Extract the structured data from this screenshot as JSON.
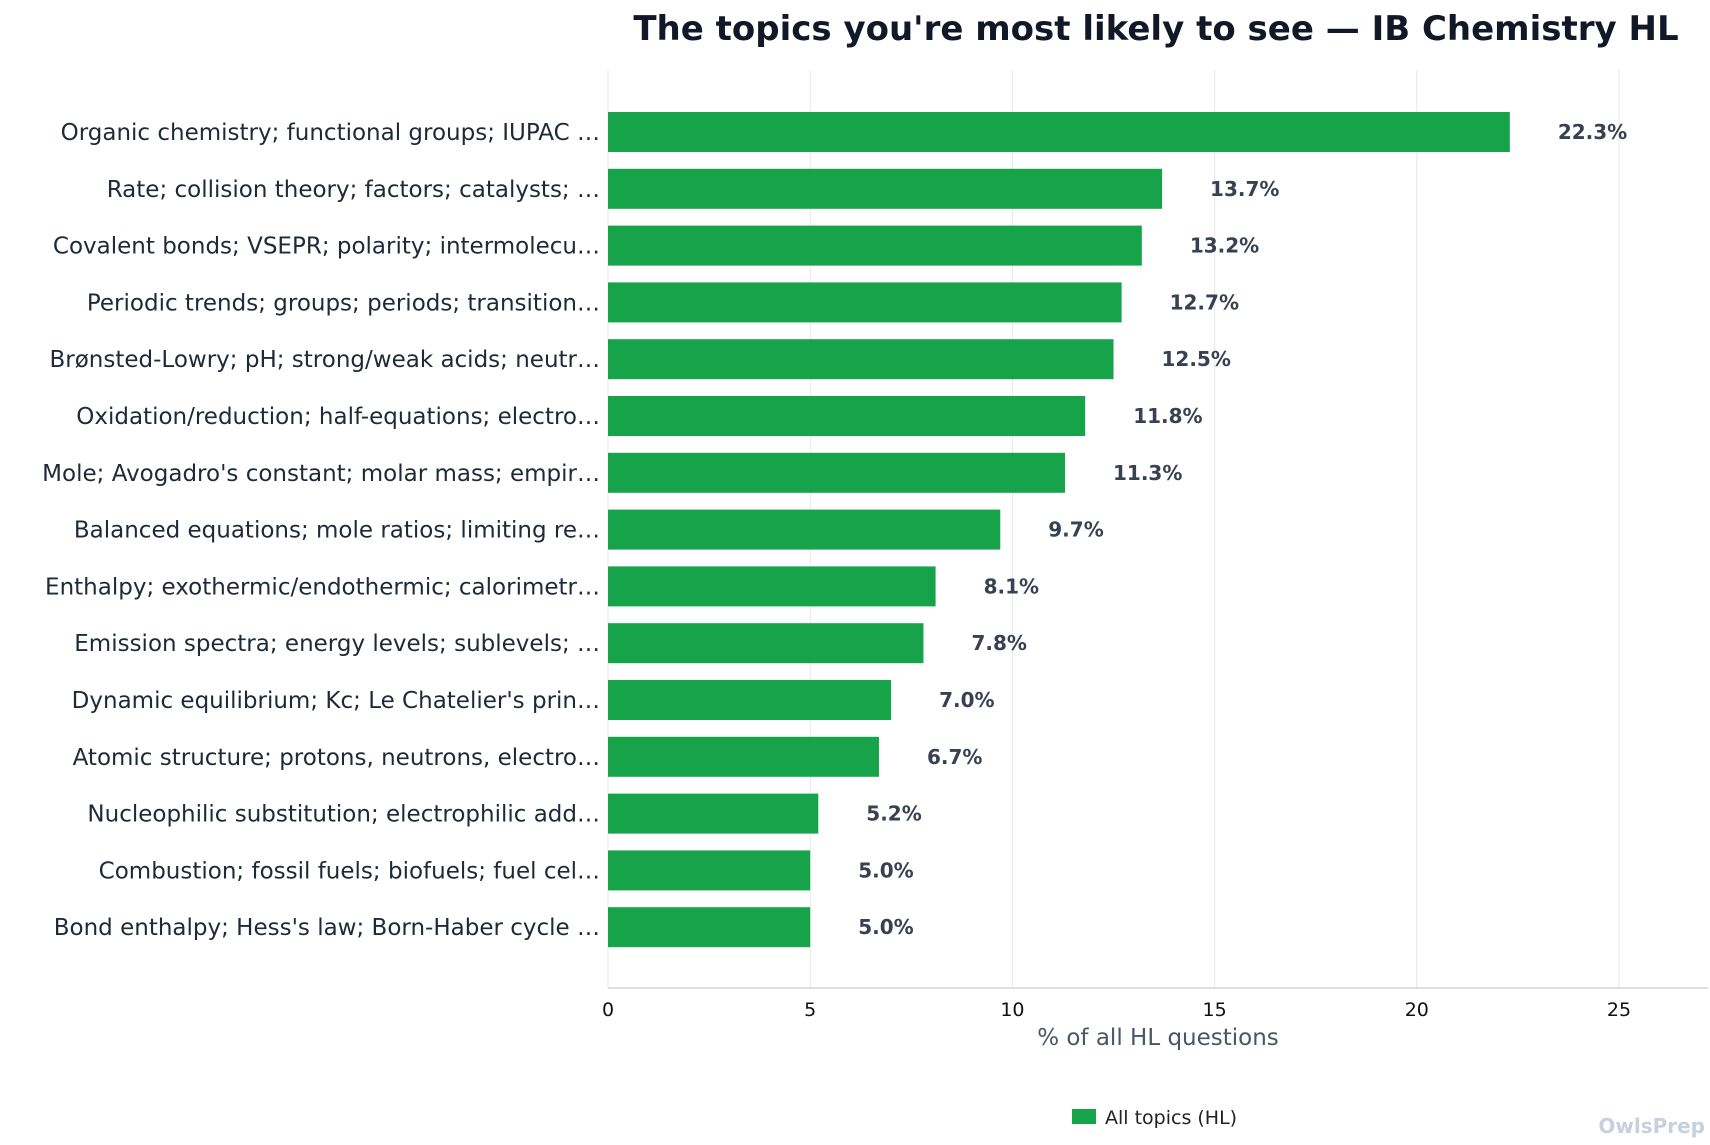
{
  "chart_data": {
    "type": "bar",
    "orientation": "horizontal",
    "title": "The topics you're most likely to see — IB Chemistry HL",
    "xlabel": "% of all HL questions",
    "ylabel": "",
    "xlim": [
      0,
      27.2
    ],
    "xticks": [
      0,
      5,
      10,
      15,
      20,
      25
    ],
    "grid": true,
    "legend_position": "bottom-center",
    "bar_color": "#16a34a",
    "categories": [
      "Organic chemistry; functional groups; IUPAC …",
      "Rate; collision theory; factors; catalysts; …",
      "Covalent bonds; VSEPR; polarity; intermolecu…",
      "Periodic trends; groups; periods; transition…",
      "Brønsted-Lowry; pH; strong/weak acids; neutr…",
      "Oxidation/reduction; half-equations; electro…",
      "Mole; Avogadro's constant; molar mass; empir…",
      "Balanced equations; mole ratios; limiting re…",
      "Enthalpy; exothermic/endothermic; calorimetr…",
      "Emission spectra; energy levels; sublevels; …",
      "Dynamic equilibrium; Kc; Le Chatelier's prin…",
      "Atomic structure; protons, neutrons, electro…",
      "Nucleophilic substitution; electrophilic add…",
      "Combustion; fossil fuels; biofuels; fuel cel…",
      "Bond enthalpy; Hess's law; Born-Haber cycle …"
    ],
    "series": [
      {
        "name": "All topics (HL)",
        "values": [
          22.3,
          13.7,
          13.2,
          12.7,
          12.5,
          11.8,
          11.3,
          9.7,
          8.1,
          7.8,
          7.0,
          6.7,
          5.2,
          5.0,
          5.0
        ],
        "value_labels": [
          "22.3%",
          "13.7%",
          "13.2%",
          "12.7%",
          "12.5%",
          "11.8%",
          "11.3%",
          "9.7%",
          "8.1%",
          "7.8%",
          "7.0%",
          "6.7%",
          "5.2%",
          "5.0%",
          "5.0%"
        ]
      }
    ]
  },
  "watermark": "OwlsPrep"
}
